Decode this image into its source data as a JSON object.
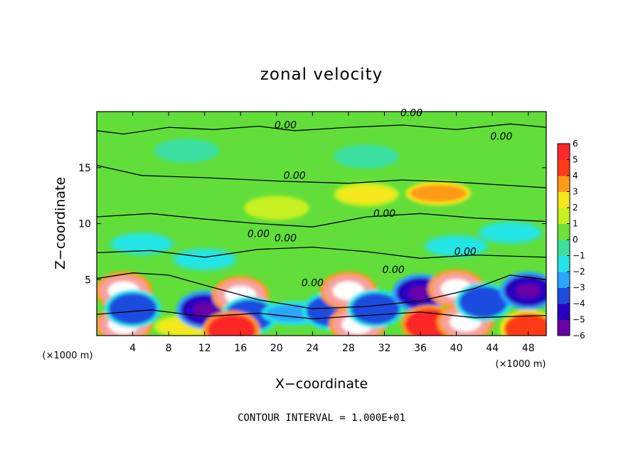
{
  "chart_data": {
    "type": "heatmap",
    "title": "zonal velocity",
    "xlabel": "X−coordinate",
    "ylabel": "Z−coordinate",
    "x_unit": "(×1000 m)",
    "xlim": [
      0,
      50
    ],
    "ylim": [
      0,
      20
    ],
    "x_ticks": [
      "4",
      "8",
      "12",
      "16",
      "20",
      "24",
      "28",
      "32",
      "36",
      "40",
      "44",
      "48"
    ],
    "y_ticks": [
      "5",
      "10",
      "15"
    ],
    "colorbar": {
      "range": [
        -6,
        6
      ],
      "ticks": [
        "6",
        "5",
        "4",
        "3",
        "2",
        "1",
        "0",
        "−1",
        "−2",
        "−3",
        "−4",
        "−5",
        "−6"
      ],
      "colors": [
        "#6a00a8",
        "#2a00c0",
        "#1f4be0",
        "#2aa6ff",
        "#22e6e6",
        "#3be0a0",
        "#6fe23a",
        "#c6f020",
        "#f5e81a",
        "#ff9a18",
        "#ff3a18",
        "#ff2828",
        "#f8a0a0"
      ]
    },
    "contour_label": "0.00",
    "footer": "CONTOUR INTERVAL = 1.000E+01",
    "grid": false,
    "cells": [
      {
        "x": 3,
        "z": 4.0,
        "v": 6
      },
      {
        "x": 3,
        "z": 1.0,
        "v": 6
      },
      {
        "x": 4,
        "z": 2.4,
        "v": -4
      },
      {
        "x": 10,
        "z": 0.8,
        "v": 2
      },
      {
        "x": 12,
        "z": 2.3,
        "v": -5
      },
      {
        "x": 16,
        "z": 3.6,
        "v": 6
      },
      {
        "x": 17,
        "z": 1.8,
        "v": -4
      },
      {
        "x": 15,
        "z": 0.5,
        "v": 5
      },
      {
        "x": 22,
        "z": 2.0,
        "v": -3
      },
      {
        "x": 26,
        "z": 2.2,
        "v": -4
      },
      {
        "x": 28,
        "z": 4.0,
        "v": 6
      },
      {
        "x": 29,
        "z": 1.0,
        "v": 6
      },
      {
        "x": 31,
        "z": 2.4,
        "v": -4
      },
      {
        "x": 36,
        "z": 3.8,
        "v": -5
      },
      {
        "x": 37,
        "z": 1.0,
        "v": 5
      },
      {
        "x": 40,
        "z": 4.2,
        "v": 6
      },
      {
        "x": 41,
        "z": 1.2,
        "v": 6
      },
      {
        "x": 43,
        "z": 3.0,
        "v": -4
      },
      {
        "x": 48,
        "z": 4.0,
        "v": -5
      },
      {
        "x": 48,
        "z": 0.6,
        "v": 4
      },
      {
        "x": 5,
        "z": 8.2,
        "v": -2
      },
      {
        "x": 12,
        "z": 6.8,
        "v": -2
      },
      {
        "x": 40,
        "z": 8.0,
        "v": -2
      },
      {
        "x": 46,
        "z": 9.2,
        "v": -2
      },
      {
        "x": 38,
        "z": 12.7,
        "v": 3
      },
      {
        "x": 30,
        "z": 12.6,
        "v": 2
      },
      {
        "x": 20,
        "z": 11.4,
        "v": 1
      },
      {
        "x": 10,
        "z": 16.5,
        "v": -1
      },
      {
        "x": 30,
        "z": 16.0,
        "v": -1
      }
    ]
  }
}
